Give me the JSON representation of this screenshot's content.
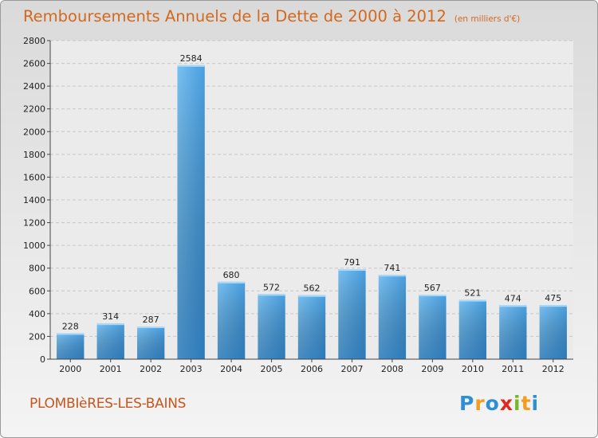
{
  "title": "Remboursements Annuels de la Dette de 2000 à 2012",
  "subtitle": "(en milliers d'€)",
  "commune": "PLOMBIèRES-LES-BAINS",
  "logo": {
    "letters": [
      "P",
      "r",
      "o",
      "x",
      "i",
      "t",
      "i"
    ],
    "colors": [
      "#2d8fd5",
      "#f39c1f",
      "#2d8fd5",
      "#e2281c",
      "#77b72b",
      "#f39c1f",
      "#2d8fd5"
    ]
  },
  "colors": {
    "bar_light": "#6ab7ee",
    "bar_dark": "#2a7dc2",
    "title": "#d2691e"
  },
  "chart_data": {
    "type": "bar",
    "categories": [
      "2000",
      "2001",
      "2002",
      "2003",
      "2004",
      "2005",
      "2006",
      "2007",
      "2008",
      "2009",
      "2010",
      "2011",
      "2012"
    ],
    "values": [
      228,
      314,
      287,
      2584,
      680,
      572,
      562,
      791,
      741,
      567,
      521,
      474,
      475
    ],
    "ylim": [
      0,
      2800
    ],
    "yticks": [
      0,
      200,
      400,
      600,
      800,
      1000,
      1200,
      1400,
      1600,
      1800,
      2000,
      2200,
      2400,
      2600,
      2800
    ],
    "grid": true,
    "data_labels": true
  }
}
